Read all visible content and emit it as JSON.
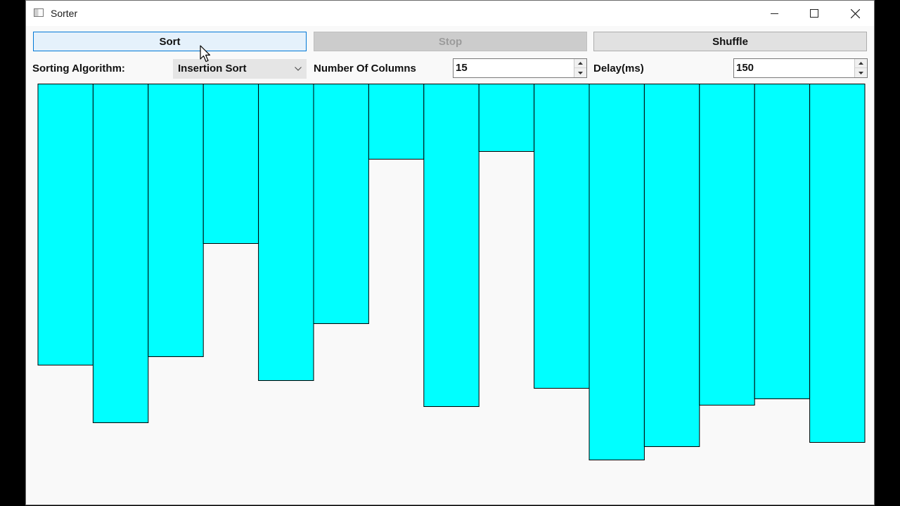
{
  "window": {
    "title": "Sorter"
  },
  "toolbar": {
    "sort_label": "Sort",
    "stop_label": "Stop",
    "shuffle_label": "Shuffle"
  },
  "controls": {
    "algorithm_label": "Sorting Algorithm:",
    "algorithm_value": "Insertion Sort",
    "columns_label": "Number Of Columns",
    "columns_value": "15",
    "delay_label": "Delay(ms)",
    "delay_value": "150"
  },
  "chart_data": {
    "type": "bar",
    "values": [
      400,
      482,
      388,
      227,
      422,
      341,
      107,
      459,
      96,
      433,
      535,
      516,
      457,
      448,
      510
    ],
    "bar_color": "#00ffff",
    "bar_border_color": "#000000"
  },
  "colors": {
    "accent": "#0078d7",
    "window_bg": "#f9f9f9"
  }
}
